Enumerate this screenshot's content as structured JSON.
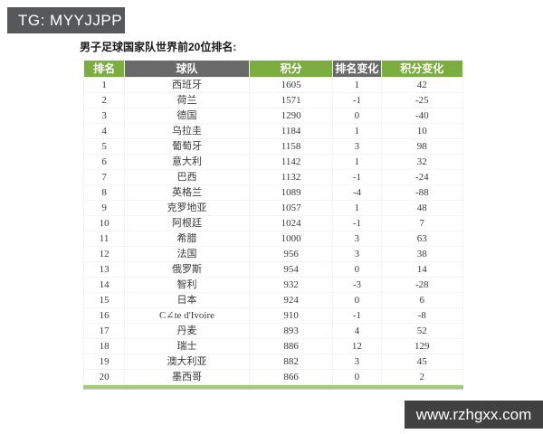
{
  "page": {
    "watermark_top": "TG: MYYJJPP",
    "watermark_bottom": "www.rzhgxx.com",
    "title": "男子足球国家队世界前20位排名:"
  },
  "chart_data": {
    "type": "table",
    "title": "男子足球国家队世界前20位排名:",
    "columns": [
      "排名",
      "球队",
      "积分",
      "排名变化",
      "积分变化"
    ],
    "rows": [
      [
        1,
        "西班牙",
        1605,
        1,
        42
      ],
      [
        2,
        "荷兰",
        1571,
        -1,
        -25
      ],
      [
        3,
        "德国",
        1290,
        0,
        -40
      ],
      [
        4,
        "乌拉圭",
        1184,
        1,
        10
      ],
      [
        5,
        "葡萄牙",
        1158,
        3,
        98
      ],
      [
        6,
        "意大利",
        1142,
        1,
        32
      ],
      [
        7,
        "巴西",
        1132,
        -1,
        -24
      ],
      [
        8,
        "英格兰",
        1089,
        -4,
        -88
      ],
      [
        9,
        "克罗地亚",
        1057,
        1,
        48
      ],
      [
        10,
        "阿根廷",
        1024,
        -1,
        7
      ],
      [
        11,
        "希腊",
        1000,
        3,
        63
      ],
      [
        12,
        "法国",
        956,
        3,
        38
      ],
      [
        13,
        "俄罗斯",
        954,
        0,
        14
      ],
      [
        14,
        "智利",
        932,
        -3,
        -28
      ],
      [
        15,
        "日本",
        924,
        0,
        6
      ],
      [
        16,
        "C∠te d'Ivoire",
        910,
        -1,
        -8
      ],
      [
        17,
        "丹麦",
        893,
        4,
        52
      ],
      [
        18,
        "瑞士",
        886,
        12,
        129
      ],
      [
        19,
        "澳大利亚",
        882,
        3,
        45
      ],
      [
        20,
        "墨西哥",
        866,
        0,
        2
      ]
    ],
    "layout": {
      "striping": "even rows colored: odd columns green, even columns gray",
      "grid": "thin light separators",
      "legend": "none"
    }
  },
  "colors": {
    "header_green": "#7bae3e",
    "header_gray": "#6a6a6a",
    "row_green": "#97c563",
    "row_gray": "#d3d3d3",
    "footer_bar_green": "#a3ca77",
    "watermark_top_bg": "#57585a",
    "watermark_bottom_bg": "#414141",
    "watermark_text": "#ffffff"
  }
}
